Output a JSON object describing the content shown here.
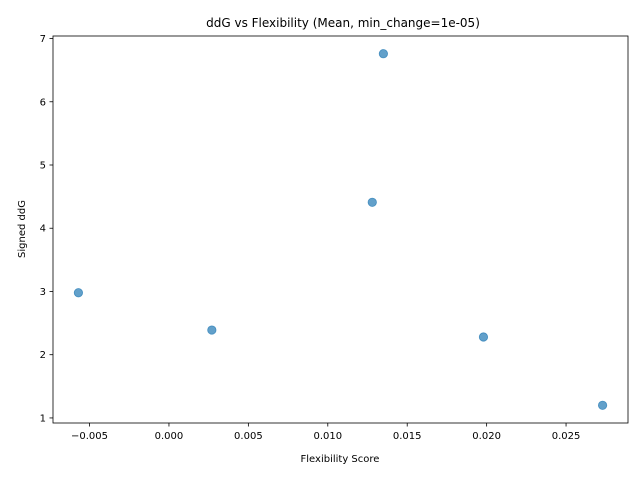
{
  "chart_data": {
    "type": "scatter",
    "title": "ddG vs Flexibility (Mean, min_change=1e-05)",
    "xlabel": "Flexibility Score",
    "ylabel": "Signed ddG",
    "xlim": [
      -0.0073,
      0.0289
    ],
    "ylim": [
      0.92,
      7.04
    ],
    "x_ticks": [
      -0.005,
      0.0,
      0.005,
      0.01,
      0.015,
      0.02,
      0.025
    ],
    "x_tick_labels": [
      "−0.005",
      "0.000",
      "0.005",
      "0.010",
      "0.015",
      "0.020",
      "0.025"
    ],
    "y_ticks": [
      1,
      2,
      3,
      4,
      5,
      6,
      7
    ],
    "y_tick_labels": [
      "1",
      "2",
      "3",
      "4",
      "5",
      "6",
      "7"
    ],
    "grid": false,
    "marker_color": "#1f77b4",
    "marker_alpha": 0.7,
    "points": [
      {
        "x": -0.0057,
        "y": 2.98
      },
      {
        "x": 0.0027,
        "y": 2.39
      },
      {
        "x": 0.0128,
        "y": 4.41
      },
      {
        "x": 0.0135,
        "y": 6.76
      },
      {
        "x": 0.0198,
        "y": 2.28
      },
      {
        "x": 0.0273,
        "y": 1.2
      }
    ]
  }
}
